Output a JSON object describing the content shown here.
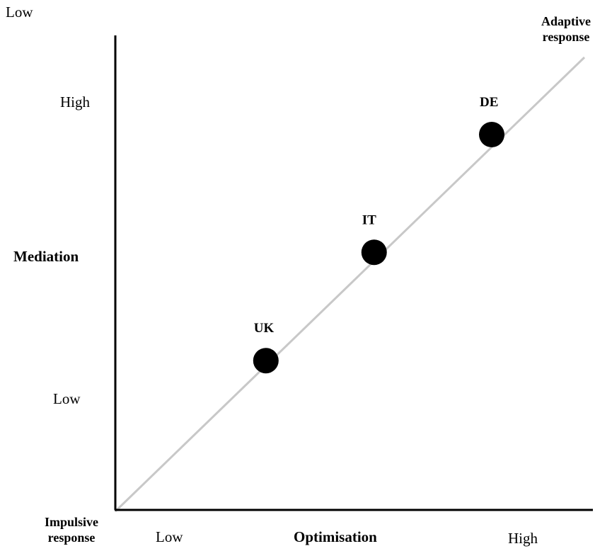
{
  "chart_data": {
    "type": "scatter",
    "title": "",
    "xlabel": "Optimisation",
    "ylabel": "Mediation",
    "x_tick_labels": [
      "Low",
      "High"
    ],
    "y_tick_labels": [
      "Low",
      "High"
    ],
    "corner_labels": {
      "top_left": "Low",
      "origin": [
        "Impulsive",
        "response"
      ],
      "diagonal_end": [
        "Adaptive",
        "response"
      ]
    },
    "points": [
      {
        "label": "UK",
        "x": 0.32,
        "y": 0.32
      },
      {
        "label": "IT",
        "x": 0.55,
        "y": 0.55
      },
      {
        "label": "DE",
        "x": 0.8,
        "y": 0.8
      }
    ],
    "diagonal_line": true,
    "colors": {
      "line": "#c8c8c8",
      "axis": "#000000",
      "point": "#000000"
    }
  }
}
